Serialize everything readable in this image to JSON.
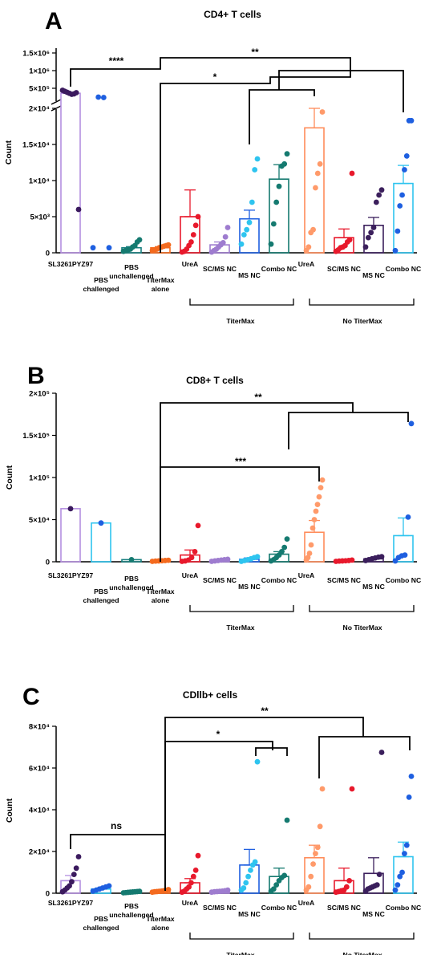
{
  "figure": {
    "panels": [
      {
        "letter": "A",
        "title": "CD4+ T cells",
        "ylabel": "Count",
        "yticks_lower": [
          "0",
          "5×10³",
          "1×10⁴",
          "1.5×10⁴",
          "2×10⁴"
        ],
        "yticks_upper": [
          "5×10⁵",
          "1×10⁶",
          "1.5×10⁶"
        ],
        "group_labels": [
          "TiterMax",
          "No TiterMax"
        ],
        "significance": [
          "****",
          "**",
          "*"
        ]
      },
      {
        "letter": "B",
        "title": "CD8+ T cells",
        "ylabel": "Count",
        "yticks": [
          "0",
          "5×10⁴",
          "1×10⁵",
          "1.5×10⁵",
          "2×10⁵"
        ],
        "group_labels": [
          "TiterMax",
          "No TiterMax"
        ],
        "significance": [
          "**",
          "***"
        ]
      },
      {
        "letter": "C",
        "title": "CDllb+ cells",
        "ylabel": "Count",
        "yticks": [
          "0",
          "2×10⁴",
          "4×10⁴",
          "6×10⁴",
          "8×10⁴"
        ],
        "group_labels": [
          "TiterMax",
          "No TiterMax"
        ],
        "significance": [
          "ns",
          "**",
          "*"
        ]
      }
    ],
    "x_labels": [
      "SL3261PYZ97",
      "PBS challenged",
      "PBS unchallenged",
      "TiterMax alone",
      "UreA",
      "SC/MS NC",
      "MS NC",
      "Combo NC",
      "UreA",
      "SC/MS NC",
      "MS NC",
      "Combo NC"
    ],
    "group_colors": [
      "#b48fe0",
      "#2ec4ef",
      "#177f7f",
      "#f46a1e",
      "#e8192c",
      "#9e7ccf",
      "#1e5fe0",
      "#157a70",
      "#ff8c5a",
      "#e8192c",
      "#3b1f5c",
      "#2ec4ef"
    ],
    "point_colors": [
      "#3b1a5e",
      "#1e5fe0",
      "#157a70",
      "#f46a1e",
      "#e8192c",
      "#9e7ccf",
      "#2ec4ef",
      "#157a70",
      "#ff9a6a",
      "#e8192c",
      "#3b1f5c",
      "#1e5fe0"
    ]
  },
  "chart_data": [
    {
      "type": "bar",
      "title": "CD4+ T cells",
      "ylabel": "Count",
      "scale": "broken y-axis (0–2×10⁴ linear, upper segment to 1.5×10⁶)",
      "categories": [
        "SL3261PYZ97",
        "PBS challenged",
        "PBS unchallenged",
        "TiterMax alone",
        "UreA",
        "SC/MS NC",
        "MS NC",
        "Combo NC",
        "UreA",
        "SC/MS NC",
        "MS NC",
        "Combo NC"
      ],
      "values": [
        250000,
        0,
        700,
        700,
        5000,
        1100,
        4700,
        10200,
        17300,
        2100,
        3800,
        9600
      ],
      "errors": [
        0,
        0,
        150,
        150,
        3700,
        400,
        1200,
        2000,
        2700,
        1200,
        1100,
        2500
      ],
      "points": [
        [
          400000,
          350000,
          300000,
          250000,
          200000,
          220000,
          280000,
          6000
        ],
        [
          700,
          60000,
          40000,
          700
        ],
        [
          200,
          300,
          400,
          500,
          800,
          1000,
          1500,
          1800
        ],
        [
          300,
          400,
          500,
          700,
          800,
          900,
          1000,
          1100
        ],
        [
          100,
          200,
          500,
          1000,
          1500,
          2500,
          3800,
          5000
        ],
        [
          100,
          300,
          500,
          800,
          1100,
          1400,
          2200,
          3500
        ],
        [
          1200,
          2500,
          3200,
          4200,
          7000,
          11500,
          13000
        ],
        [
          1200,
          4000,
          7000,
          9200,
          12000,
          12300,
          13700
        ],
        [
          300,
          800,
          2800,
          3200,
          9000,
          11000,
          12300,
          19500
        ],
        [
          200,
          400,
          700,
          800,
          1000,
          1500,
          1800,
          11000
        ],
        [
          800,
          2100,
          2800,
          3500,
          7000,
          8000,
          8700
        ],
        [
          300,
          3000,
          6500,
          8000,
          11500,
          13400,
          18300,
          18300
        ]
      ],
      "ylim": [
        0,
        1500000
      ],
      "group_labels": [
        "TiterMax",
        "No TiterMax"
      ],
      "significance": [
        {
          "label": "****",
          "from": "SL3261PYZ97",
          "to": "UreA (TiterMax) – Combo NC (No TiterMax)"
        },
        {
          "label": "**",
          "from": "TiterMax alone",
          "to": "SC/MS NC (No TiterMax)"
        },
        {
          "label": "*",
          "from": "TiterMax alone",
          "to": "MS NC – UreA (No TiterMax)"
        },
        {
          "label": "",
          "from": "MS NC (TiterMax)",
          "to": "UreA (No TiterMax)"
        },
        {
          "label": "",
          "from": "SC/MS NC (No TiterMax)",
          "to": "Combo NC (No TiterMax)"
        }
      ]
    },
    {
      "type": "bar",
      "title": "CD8+ T cells",
      "ylabel": "Count",
      "categories": [
        "SL3261PYZ97",
        "PBS challenged",
        "PBS unchallenged",
        "TiterMax alone",
        "UreA",
        "SC/MS NC",
        "MS NC",
        "Combo NC",
        "UreA",
        "SC/MS NC",
        "MS NC",
        "Combo NC"
      ],
      "values": [
        63000,
        46000,
        2500,
        1500,
        8000,
        2000,
        3000,
        9000,
        35000,
        1500,
        3500,
        31000
      ],
      "errors": [
        0,
        0,
        0,
        300,
        6000,
        500,
        1500,
        3000,
        14000,
        300,
        1000,
        21000
      ],
      "points": [
        [
          63000
        ],
        [
          46000
        ],
        [
          2500
        ],
        [
          500,
          800,
          1000,
          1200,
          1500,
          1800
        ],
        [
          500,
          1000,
          2000,
          5000,
          12000,
          43000
        ],
        [
          500,
          1000,
          1500,
          2000,
          2500,
          3000
        ],
        [
          500,
          1500,
          2500,
          3500,
          5000,
          6000
        ],
        [
          1000,
          2500,
          5000,
          8000,
          12000,
          17000,
          27000
        ],
        [
          2000,
          5000,
          10000,
          20000,
          40000,
          50000,
          60000,
          68000,
          77000,
          88000,
          97000
        ],
        [
          500,
          800,
          1000,
          1200,
          1500,
          2000
        ],
        [
          1500,
          2500,
          3500,
          4500,
          5500,
          6000
        ],
        [
          1000,
          5000,
          7000,
          8000,
          53000,
          164000
        ]
      ],
      "ylim": [
        0,
        200000
      ],
      "group_labels": [
        "TiterMax",
        "No TiterMax"
      ],
      "significance": [
        {
          "label": "**",
          "from": "TiterMax alone",
          "to": "UreA – Combo NC (No TiterMax)"
        },
        {
          "label": "***",
          "from": "TiterMax alone",
          "to": "UreA (No TiterMax)"
        },
        {
          "label": "",
          "from": "UreA (No TiterMax)",
          "to": "Combo NC (No TiterMax)"
        }
      ]
    },
    {
      "type": "bar",
      "title": "CDllb+ cells",
      "ylabel": "Count",
      "categories": [
        "SL3261PYZ97",
        "PBS challenged",
        "PBS unchallenged",
        "TiterMax alone",
        "UreA",
        "SC/MS NC",
        "MS NC",
        "Combo NC",
        "UreA",
        "SC/MS NC",
        "MS NC",
        "Combo NC"
      ],
      "values": [
        6000,
        2000,
        500,
        1000,
        5000,
        1000,
        13500,
        8000,
        17000,
        6000,
        9500,
        17500
      ],
      "errors": [
        2500,
        500,
        100,
        200,
        2000,
        200,
        7500,
        4000,
        6000,
        6000,
        7500,
        7000
      ],
      "points": [
        [
          700,
          1500,
          2500,
          3500,
          5500,
          9000,
          12000,
          17500
        ],
        [
          1000,
          1500,
          2000,
          2500,
          3000,
          3500
        ],
        [
          200,
          300,
          400,
          500,
          600,
          700,
          800,
          900
        ],
        [
          500,
          700,
          800,
          900,
          1000,
          1200,
          1400,
          1700
        ],
        [
          500,
          1000,
          2000,
          3000,
          5000,
          8000,
          11000,
          18000
        ],
        [
          500,
          700,
          800,
          900,
          1000,
          1200,
          1500
        ],
        [
          1500,
          2500,
          5000,
          8000,
          11000,
          13500,
          15000,
          63000
        ],
        [
          1000,
          2000,
          4000,
          6000,
          7500,
          8500,
          35000
        ],
        [
          1500,
          3000,
          8000,
          14000,
          19000,
          22000,
          32000,
          50000
        ],
        [
          500,
          800,
          1200,
          1500,
          3000,
          6000,
          50000
        ],
        [
          1000,
          2000,
          2500,
          3000,
          3500,
          4000,
          9000,
          67500
        ],
        [
          1500,
          4000,
          8000,
          10000,
          19000,
          23000,
          46000,
          56000
        ]
      ],
      "ylim": [
        0,
        80000
      ],
      "group_labels": [
        "TiterMax",
        "No TiterMax"
      ],
      "significance": [
        {
          "label": "ns",
          "from": "SL3261PYZ97",
          "to": "TiterMax alone"
        },
        {
          "label": "**",
          "from": "TiterMax alone",
          "to": "UreA – Combo NC (No TiterMax)"
        },
        {
          "label": "*",
          "from": "TiterMax alone",
          "to": "MS NC – Combo NC (TiterMax)"
        },
        {
          "label": "",
          "from": "MS NC (TiterMax)",
          "to": "Combo NC (TiterMax)"
        },
        {
          "label": "",
          "from": "UreA (No TiterMax)",
          "to": "Combo NC (No TiterMax)"
        }
      ]
    }
  ]
}
